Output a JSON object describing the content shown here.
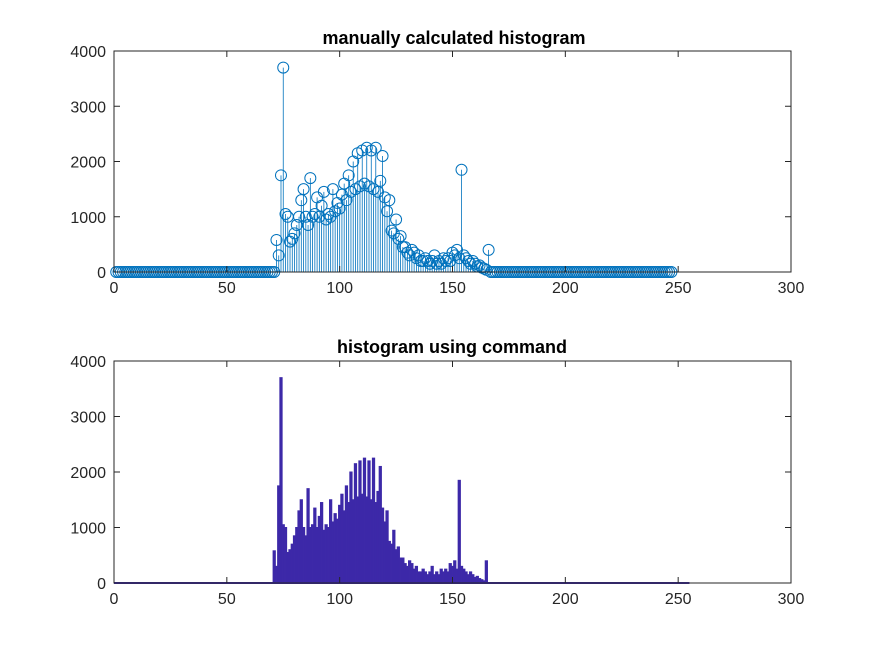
{
  "colors": {
    "stem": "#0072BD",
    "bar": "#3D29A8",
    "axis": "#262626",
    "background": "#ffffff"
  },
  "chart_data": [
    {
      "type": "stem",
      "title": "manually calculated histogram",
      "xlabel": "",
      "ylabel": "",
      "xlim": [
        0,
        300
      ],
      "ylim": [
        0,
        4000
      ],
      "xticks": [
        "0",
        "50",
        "100",
        "150",
        "200",
        "250",
        "300"
      ],
      "yticks": [
        "0",
        "1000",
        "2000",
        "3000",
        "4000"
      ],
      "grid": false,
      "marker": "open-circle",
      "x_range": [
        1,
        256
      ],
      "values": [
        0,
        0,
        0,
        0,
        0,
        0,
        0,
        0,
        0,
        0,
        0,
        0,
        0,
        0,
        0,
        0,
        0,
        0,
        0,
        0,
        0,
        0,
        0,
        0,
        0,
        0,
        0,
        0,
        0,
        0,
        0,
        0,
        0,
        0,
        0,
        0,
        0,
        0,
        0,
        0,
        0,
        0,
        0,
        0,
        0,
        0,
        0,
        0,
        0,
        0,
        0,
        0,
        0,
        0,
        0,
        0,
        0,
        0,
        0,
        0,
        0,
        0,
        0,
        0,
        0,
        0,
        0,
        0,
        0,
        0,
        0,
        580,
        300,
        1750,
        3700,
        1050,
        1000,
        550,
        600,
        700,
        850,
        1000,
        1300,
        1500,
        1000,
        850,
        1700,
        1000,
        1050,
        1350,
        1000,
        1200,
        1450,
        950,
        1050,
        1000,
        1500,
        1100,
        1250,
        1150,
        1400,
        1600,
        1300,
        1750,
        1450,
        2000,
        1500,
        2150,
        1550,
        2200,
        1600,
        2250,
        1550,
        2200,
        1500,
        2250,
        1450,
        1650,
        2100,
        1350,
        1100,
        1300,
        750,
        700,
        950,
        600,
        650,
        450,
        450,
        350,
        300,
        400,
        350,
        250,
        300,
        200,
        200,
        250,
        200,
        150,
        200,
        300,
        150,
        200,
        150,
        250,
        200,
        250,
        200,
        350,
        300,
        400,
        250,
        1850,
        300,
        250,
        200,
        150,
        200,
        150,
        100,
        120,
        80,
        60,
        40,
        400,
        0,
        0,
        0,
        0,
        0,
        0,
        0,
        0,
        0,
        0,
        0,
        0,
        0,
        0,
        0,
        0,
        0,
        0,
        0,
        0,
        0,
        0,
        0,
        0,
        0,
        0,
        0,
        0,
        0,
        0,
        0,
        0,
        0,
        0,
        0,
        0,
        0,
        0,
        0,
        0,
        0,
        0,
        0,
        0,
        0,
        0,
        0,
        0,
        0,
        0,
        0,
        0,
        0,
        0,
        0,
        0,
        0,
        0,
        0,
        0,
        0,
        0,
        0,
        0,
        0,
        0,
        0,
        0,
        0,
        0,
        0,
        0,
        0,
        0,
        0,
        0,
        0,
        0,
        0,
        0,
        0
      ]
    },
    {
      "type": "bar",
      "title": "histogram using command",
      "xlabel": "",
      "ylabel": "",
      "xlim": [
        0,
        300
      ],
      "ylim": [
        0,
        4000
      ],
      "xticks": [
        "0",
        "50",
        "100",
        "150",
        "200",
        "250",
        "300"
      ],
      "yticks": [
        "0",
        "1000",
        "2000",
        "3000",
        "4000"
      ],
      "grid": false,
      "x_range": [
        0,
        255
      ],
      "values": [
        0,
        0,
        0,
        0,
        0,
        0,
        0,
        0,
        0,
        0,
        0,
        0,
        0,
        0,
        0,
        0,
        0,
        0,
        0,
        0,
        0,
        0,
        0,
        0,
        0,
        0,
        0,
        0,
        0,
        0,
        0,
        0,
        0,
        0,
        0,
        0,
        0,
        0,
        0,
        0,
        0,
        0,
        0,
        0,
        0,
        0,
        0,
        0,
        0,
        0,
        0,
        0,
        0,
        0,
        0,
        0,
        0,
        0,
        0,
        0,
        0,
        0,
        0,
        0,
        0,
        0,
        0,
        0,
        0,
        0,
        0,
        580,
        300,
        1750,
        3700,
        1050,
        1000,
        550,
        600,
        700,
        850,
        1000,
        1300,
        1500,
        1000,
        850,
        1700,
        1000,
        1050,
        1350,
        1000,
        1200,
        1450,
        950,
        1050,
        1000,
        1500,
        1100,
        1250,
        1150,
        1400,
        1600,
        1300,
        1750,
        1450,
        2000,
        1500,
        2150,
        1550,
        2200,
        1600,
        2250,
        1550,
        2200,
        1500,
        2250,
        1450,
        1650,
        2100,
        1350,
        1100,
        1300,
        750,
        700,
        950,
        600,
        650,
        450,
        450,
        350,
        300,
        400,
        350,
        250,
        300,
        200,
        200,
        250,
        200,
        150,
        200,
        300,
        150,
        200,
        150,
        250,
        200,
        250,
        200,
        350,
        300,
        400,
        250,
        1850,
        300,
        250,
        200,
        150,
        200,
        150,
        100,
        120,
        80,
        60,
        40,
        400,
        0,
        0,
        0,
        0,
        0,
        0,
        0,
        0,
        0,
        0,
        0,
        0,
        0,
        0,
        0,
        0,
        0,
        0,
        0,
        0,
        0,
        0,
        0,
        0,
        0,
        0,
        0,
        0,
        0,
        0,
        0,
        0,
        0,
        0,
        0,
        0,
        0,
        0,
        0,
        0,
        0,
        0,
        0,
        0,
        0,
        0,
        0,
        0,
        0,
        0,
        0,
        0,
        0,
        0,
        0,
        0,
        0,
        0,
        0,
        0,
        0,
        0,
        0,
        0,
        0,
        0,
        0,
        0,
        0,
        0,
        0,
        0,
        0,
        0,
        0,
        0,
        0,
        0,
        0,
        0,
        0,
        0
      ]
    }
  ]
}
